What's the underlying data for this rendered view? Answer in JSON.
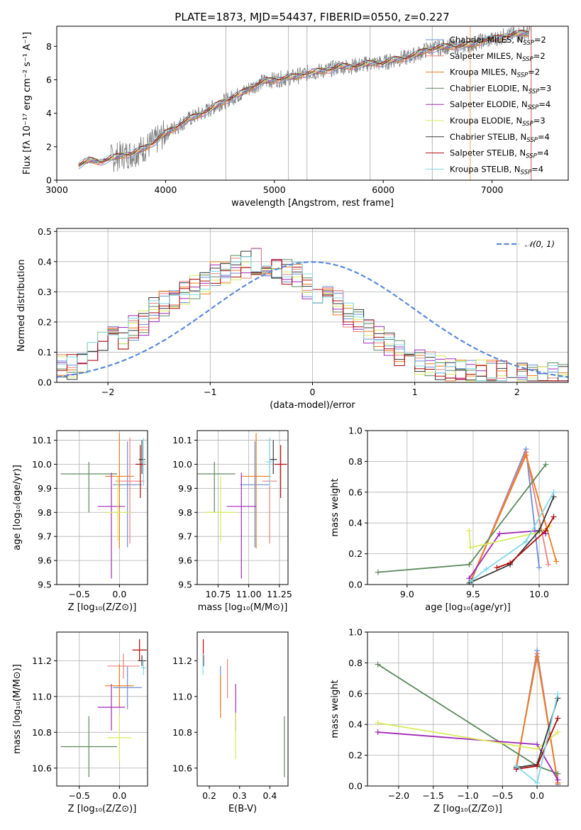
{
  "series_styles": [
    {
      "name": "Chabrier MILES",
      "nssp": "2",
      "color": "#6a8fd8"
    },
    {
      "name": "Salpeter MILES",
      "nssp": "2",
      "color": "#f07f7f"
    },
    {
      "name": "Kroupa MILES",
      "nssp": "2",
      "color": "#ee7a1a"
    },
    {
      "name": "Chabrier ELODIE",
      "nssp": "3",
      "color": "#5c8a5c"
    },
    {
      "name": "Salpeter ELODIE",
      "nssp": "4",
      "color": "#a028b8"
    },
    {
      "name": "Kroupa ELODIE",
      "nssp": "3",
      "color": "#d8ec5a"
    },
    {
      "name": "Chabrier STELIB",
      "nssp": "4",
      "color": "#383838"
    },
    {
      "name": "Salpeter STELIB",
      "nssp": "4",
      "color": "#b00a0a"
    },
    {
      "name": "Kroupa STELIB",
      "nssp": "4",
      "color": "#7fd8e8"
    }
  ],
  "chart_data": [
    {
      "id": "spectrum",
      "type": "line",
      "title": "PLATE=1873, MJD=54437, FIBERID=0550, z=0.227",
      "xlabel": "wavelength [Angstrom, rest frame]",
      "ylabel": "Flux [fλ 10⁻¹⁷ erg cm⁻² s⁻¹ A⁻¹]",
      "xlim": [
        3000,
        7700
      ],
      "ylim": [
        0,
        9.2
      ],
      "xticks": [
        3000,
        4000,
        5000,
        6000,
        7000
      ],
      "yticks": [
        0,
        2,
        4,
        6,
        8
      ],
      "data_color": "#808080",
      "data": {
        "x": [
          3200,
          3300,
          3400,
          3500,
          3600,
          3700,
          3800,
          3900,
          4000,
          4100,
          4200,
          4300,
          4400,
          4500,
          4600,
          4700,
          4800,
          4900,
          5000,
          5100,
          5200,
          5300,
          5400,
          5500,
          5600,
          5700,
          5800,
          5900,
          6000,
          6100,
          6200,
          6300,
          6400,
          6500,
          6600,
          6700,
          6800,
          6900,
          7000,
          7100,
          7200,
          7300,
          7350
        ],
        "y": [
          0.9,
          1.2,
          1.1,
          1.3,
          1.5,
          1.6,
          1.9,
          2.3,
          2.8,
          3.2,
          3.6,
          3.9,
          4.2,
          4.6,
          4.9,
          5.2,
          5.6,
          5.9,
          6.0,
          6.1,
          6.2,
          6.4,
          6.5,
          6.6,
          6.8,
          6.8,
          6.9,
          7.0,
          7.0,
          7.2,
          7.3,
          7.5,
          7.8,
          7.9,
          8.0,
          8.0,
          8.1,
          8.3,
          8.4,
          8.6,
          8.7,
          8.8,
          8.8
        ]
      },
      "legend": "upper right"
    },
    {
      "id": "residuals",
      "type": "histogram",
      "xlabel": "(data-model)/error",
      "ylabel": "Normed distribution",
      "xlim": [
        -2.5,
        2.5
      ],
      "ylim": [
        0,
        0.51
      ],
      "xticks": [
        -2,
        -1,
        0,
        1,
        2
      ],
      "yticks": [
        0.0,
        0.1,
        0.2,
        0.3,
        0.4,
        0.5
      ],
      "gaussian_label": "𝒩(0, 1)",
      "gaussian_color": "#5a8ad8",
      "bin_edges_start": -2.5,
      "bin_width": 0.1,
      "mean_profile": [
        0.05,
        0.05,
        0.06,
        0.1,
        0.14,
        0.15,
        0.15,
        0.18,
        0.2,
        0.24,
        0.26,
        0.27,
        0.3,
        0.32,
        0.33,
        0.36,
        0.37,
        0.38,
        0.39,
        0.4,
        0.39,
        0.38,
        0.37,
        0.36,
        0.32,
        0.3,
        0.28,
        0.26,
        0.22,
        0.2,
        0.17,
        0.15,
        0.12,
        0.1,
        0.08,
        0.07,
        0.06,
        0.05,
        0.04,
        0.03,
        0.03,
        0.03,
        0.03,
        0.03,
        0.03,
        0.02,
        0.02,
        0.02,
        0.02,
        0.02
      ]
    },
    {
      "id": "z-vs-age",
      "type": "errorbar",
      "xlabel": "Z [log₁₀(Z/Z⊙)]",
      "ylabel": "age  [log₁₀(age/yr)]",
      "xlim": [
        -0.78,
        0.35
      ],
      "ylim": [
        9.5,
        10.14
      ],
      "xticks": [
        -0.5,
        0.0
      ],
      "yticks": [
        9.5,
        9.6,
        9.7,
        9.8,
        9.9,
        10.0,
        10.1
      ],
      "points": [
        {
          "x": 0.1,
          "xerr": 0.18,
          "y": 9.915,
          "yerr": [
            0.26,
            0.18
          ]
        },
        {
          "x": 0.13,
          "xerr": 0.18,
          "y": 9.93,
          "yerr": [
            0.26,
            0.18
          ]
        },
        {
          "x": 0.0,
          "xerr": 0.18,
          "y": 9.95,
          "yerr": [
            0.3,
            0.18
          ]
        },
        {
          "x": -0.38,
          "xerr": 0.35,
          "y": 9.96,
          "yerr": [
            0.16,
            0.05
          ]
        },
        {
          "x": -0.1,
          "xerr": 0.17,
          "y": 9.825,
          "yerr": [
            0.3,
            0.14
          ]
        },
        {
          "x": -0.02,
          "xerr": 0.16,
          "y": 9.8,
          "yerr": [
            0.12,
            0.15
          ]
        },
        {
          "x": 0.28,
          "xerr": 0.04,
          "y": 10.02,
          "yerr": [
            0.06,
            0.08
          ]
        },
        {
          "x": 0.26,
          "xerr": 0.06,
          "y": 10.0,
          "yerr": [
            0.14,
            0.08
          ]
        },
        {
          "x": 0.3,
          "xerr": 0.03,
          "y": 10.01,
          "yerr": [
            0.1,
            0.1
          ]
        }
      ]
    },
    {
      "id": "mass-vs-age",
      "type": "errorbar",
      "xlabel": "mass [log₁₀(M/M⊙)]",
      "ylabel": "",
      "xlim": [
        10.58,
        11.32
      ],
      "ylim": [
        9.5,
        10.14
      ],
      "xticks": [
        10.75,
        11.0,
        11.25
      ],
      "yticks": [
        9.5,
        9.6,
        9.7,
        9.8,
        9.9,
        10.0,
        10.1
      ],
      "points": [
        {
          "x": 11.05,
          "xerr": 0.12,
          "y": 9.915,
          "yerr": [
            0.26,
            0.18
          ]
        },
        {
          "x": 11.17,
          "xerr": 0.06,
          "y": 9.93,
          "yerr": [
            0.26,
            0.18
          ]
        },
        {
          "x": 11.06,
          "xerr": 0.12,
          "y": 9.95,
          "yerr": [
            0.3,
            0.18
          ]
        },
        {
          "x": 10.72,
          "xerr": 0.17,
          "y": 9.96,
          "yerr": [
            0.16,
            0.05
          ]
        },
        {
          "x": 10.94,
          "xerr": 0.12,
          "y": 9.825,
          "yerr": [
            0.3,
            0.14
          ]
        },
        {
          "x": 10.77,
          "xerr": 0.13,
          "y": 9.8,
          "yerr": [
            0.12,
            0.15
          ]
        },
        {
          "x": 11.2,
          "xerr": 0.03,
          "y": 10.02,
          "yerr": [
            0.06,
            0.08
          ]
        },
        {
          "x": 11.26,
          "xerr": 0.05,
          "y": 10.0,
          "yerr": [
            0.14,
            0.08
          ]
        },
        {
          "x": 11.17,
          "xerr": 0.03,
          "y": 10.01,
          "yerr": [
            0.1,
            0.1
          ]
        }
      ]
    },
    {
      "id": "age-vs-weight",
      "type": "line",
      "xlabel": "age  [log₁₀(age/yr)]",
      "ylabel": "mass weight",
      "xlim": [
        8.7,
        10.22
      ],
      "ylim": [
        0,
        1.0
      ],
      "xticks": [
        9.0,
        9.5,
        10.0
      ],
      "yticks": [
        0.0,
        0.2,
        0.4,
        0.6,
        0.8,
        1.0
      ],
      "series": [
        {
          "x": [
            9.48,
            9.9,
            10.0
          ],
          "y": [
            0.01,
            0.88,
            0.11
          ]
        },
        {
          "x": [
            9.48,
            9.9,
            10.07
          ],
          "y": [
            0.02,
            0.86,
            0.13
          ]
        },
        {
          "x": [
            9.48,
            9.9,
            10.13
          ],
          "y": [
            0.02,
            0.84,
            0.15
          ]
        },
        {
          "x": [
            8.78,
            9.47,
            10.05
          ],
          "y": [
            0.08,
            0.13,
            0.78
          ]
        },
        {
          "x": [
            9.47,
            9.7,
            10.0,
            10.05
          ],
          "y": [
            0.04,
            0.33,
            0.35,
            0.33
          ]
        },
        {
          "x": [
            9.47,
            9.48,
            10.0,
            10.08
          ],
          "y": [
            0.35,
            0.24,
            0.34,
            0.38
          ]
        },
        {
          "x": [
            9.47,
            9.78,
            10.0,
            10.11
          ],
          "y": [
            0.01,
            0.13,
            0.35,
            0.57
          ]
        },
        {
          "x": [
            9.68,
            9.78,
            10.05,
            10.11
          ],
          "y": [
            0.11,
            0.14,
            0.35,
            0.44
          ]
        },
        {
          "x": [
            9.48,
            9.6,
            9.9,
            10.11
          ],
          "y": [
            0.02,
            0.1,
            0.28,
            0.6
          ]
        }
      ]
    },
    {
      "id": "z-vs-mass",
      "type": "errorbar",
      "xlabel": "Z [log₁₀(Z/Z⊙)]",
      "ylabel": "mass [log₁₀(M/M⊙)]",
      "xlim": [
        -0.78,
        0.35
      ],
      "ylim": [
        10.5,
        11.36
      ],
      "xticks": [
        -0.5,
        0.0
      ],
      "yticks": [
        10.6,
        10.8,
        11.0,
        11.2
      ],
      "points": [
        {
          "x": 0.1,
          "xerr": 0.18,
          "y": 11.05,
          "yerr": 0.12
        },
        {
          "x": 0.05,
          "xerr": 0.2,
          "y": 11.17,
          "yerr": 0.07
        },
        {
          "x": 0.0,
          "xerr": 0.18,
          "y": 11.06,
          "yerr": 0.12
        },
        {
          "x": -0.38,
          "xerr": 0.35,
          "y": 10.72,
          "yerr": 0.17
        },
        {
          "x": -0.1,
          "xerr": 0.17,
          "y": 10.94,
          "yerr": 0.13
        },
        {
          "x": 0.0,
          "xerr": 0.15,
          "y": 10.77,
          "yerr": 0.13
        },
        {
          "x": 0.28,
          "xerr": 0.05,
          "y": 11.2,
          "yerr": 0.03
        },
        {
          "x": 0.25,
          "xerr": 0.09,
          "y": 11.26,
          "yerr": 0.06
        },
        {
          "x": 0.3,
          "xerr": 0.03,
          "y": 11.16,
          "yerr": 0.04
        }
      ]
    },
    {
      "id": "ebv-vs-mass",
      "type": "errorbar",
      "xlabel": "E(B-V)",
      "ylabel": "",
      "xlim": [
        0.16,
        0.46
      ],
      "ylim": [
        10.5,
        11.36
      ],
      "xticks": [
        0.2,
        0.3,
        0.4
      ],
      "yticks": [
        10.6,
        10.8,
        11.0,
        11.2
      ],
      "points": [
        {
          "x": 0.237,
          "y": 11.05,
          "yerr": 0.12
        },
        {
          "x": 0.26,
          "y": 11.1,
          "yerr": 0.11
        },
        {
          "x": 0.237,
          "y": 11.0,
          "yerr": 0.12
        },
        {
          "x": 0.448,
          "y": 10.72,
          "yerr": 0.17
        },
        {
          "x": 0.287,
          "y": 10.94,
          "yerr": 0.13
        },
        {
          "x": 0.287,
          "y": 10.78,
          "yerr": 0.13
        },
        {
          "x": 0.181,
          "y": 11.2,
          "yerr": 0.03
        },
        {
          "x": 0.18,
          "y": 11.26,
          "yerr": 0.06
        },
        {
          "x": 0.179,
          "y": 11.18,
          "yerr": 0.06
        }
      ]
    },
    {
      "id": "z-vs-weight",
      "type": "line",
      "xlabel": "Z [log₁₀(Z/Z⊙)]",
      "ylabel": "mass weight",
      "xlim": [
        -2.45,
        0.45
      ],
      "ylim": [
        0,
        1.0
      ],
      "xticks": [
        -2.0,
        -1.5,
        -1.0,
        -0.5,
        0.0
      ],
      "yticks": [
        0.0,
        0.2,
        0.4,
        0.6,
        0.8,
        1.0
      ],
      "series": [
        {
          "x": [
            -0.3,
            0.0,
            0.3
          ],
          "y": [
            0.11,
            0.88,
            0.01
          ]
        },
        {
          "x": [
            -0.3,
            0.0,
            0.3
          ],
          "y": [
            0.12,
            0.86,
            0.02
          ]
        },
        {
          "x": [
            -0.3,
            0.0,
            0.3
          ],
          "y": [
            0.13,
            0.84,
            0.02
          ]
        },
        {
          "x": [
            -2.3,
            0.0,
            0.3
          ],
          "y": [
            0.79,
            0.13,
            0.08
          ]
        },
        {
          "x": [
            -2.3,
            0.0,
            0.3
          ],
          "y": [
            0.35,
            0.27,
            0.04
          ]
        },
        {
          "x": [
            -2.3,
            0.0,
            0.3
          ],
          "y": [
            0.41,
            0.24,
            0.35
          ]
        },
        {
          "x": [
            -0.3,
            0.0,
            0.3
          ],
          "y": [
            0.12,
            0.14,
            0.57
          ]
        },
        {
          "x": [
            -0.3,
            0.0,
            0.3
          ],
          "y": [
            0.11,
            0.13,
            0.44
          ]
        },
        {
          "x": [
            -0.3,
            0.0,
            0.3
          ],
          "y": [
            0.13,
            0.02,
            0.6
          ]
        }
      ]
    }
  ]
}
